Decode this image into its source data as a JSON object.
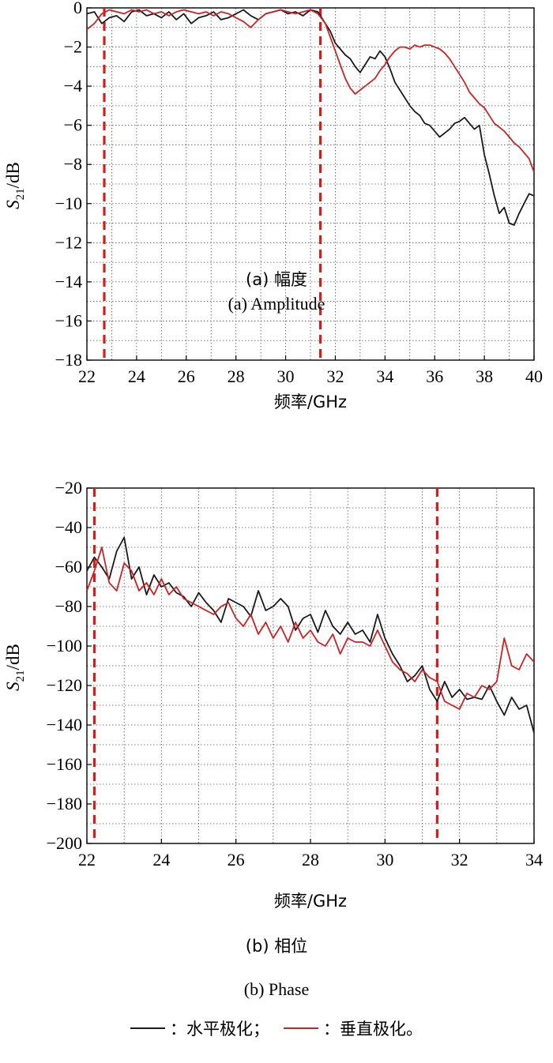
{
  "chart_data": [
    {
      "type": "line",
      "panel": "amplitude",
      "xlabel": "频率/GHz",
      "ylabel_main": "S",
      "ylabel_sub": "21",
      "ylabel_unit": "/dB",
      "caption_cn": "(a) 幅度",
      "caption_en": "(a) Amplitude",
      "xlim": [
        22,
        40
      ],
      "ylim": [
        -18,
        0
      ],
      "xticks": [
        22,
        24,
        26,
        28,
        30,
        32,
        34,
        36,
        38,
        40
      ],
      "yticks": [
        0,
        -2,
        -4,
        -6,
        -8,
        -10,
        -12,
        -14,
        -16,
        -18
      ],
      "grid": true,
      "dashed_vlines": [
        22.7,
        31.4
      ],
      "series": [
        {
          "key": "horizontal",
          "color": "#1a1a1a",
          "x": [
            22.0,
            22.3,
            22.6,
            22.9,
            23.2,
            23.5,
            23.8,
            24.1,
            24.4,
            24.7,
            25.0,
            25.3,
            25.6,
            25.9,
            26.2,
            26.5,
            26.8,
            27.1,
            27.4,
            27.7,
            28.0,
            28.3,
            28.6,
            28.9,
            29.2,
            29.5,
            29.8,
            30.1,
            30.4,
            30.7,
            31.0,
            31.3,
            31.6,
            31.8,
            32.0,
            32.2,
            32.4,
            32.6,
            32.8,
            33.0,
            33.2,
            33.4,
            33.6,
            33.8,
            34.0,
            34.2,
            34.4,
            34.6,
            34.8,
            35.0,
            35.2,
            35.4,
            35.6,
            35.8,
            36.0,
            36.2,
            36.4,
            36.6,
            36.8,
            37.0,
            37.2,
            37.4,
            37.6,
            37.8,
            38.0,
            38.2,
            38.4,
            38.6,
            38.8,
            39.0,
            39.2,
            39.4,
            39.6,
            39.8,
            40.0
          ],
          "y": [
            -0.3,
            -0.2,
            -0.8,
            -0.5,
            -0.4,
            -0.7,
            -0.2,
            -0.1,
            -0.4,
            -0.3,
            -0.5,
            -0.2,
            -0.6,
            -0.3,
            -0.8,
            -0.5,
            -0.4,
            -0.2,
            -0.6,
            -0.5,
            -0.3,
            -0.1,
            -0.4,
            -0.6,
            -0.3,
            -0.2,
            -0.1,
            -0.3,
            -0.2,
            -0.4,
            -0.1,
            -0.2,
            -0.8,
            -1.2,
            -1.8,
            -2.1,
            -2.4,
            -2.6,
            -3.0,
            -3.3,
            -2.9,
            -2.5,
            -2.6,
            -2.2,
            -2.5,
            -3.1,
            -3.8,
            -4.2,
            -4.6,
            -5.0,
            -5.3,
            -5.5,
            -5.9,
            -6.0,
            -6.3,
            -6.6,
            -6.4,
            -6.2,
            -5.9,
            -5.8,
            -5.6,
            -5.9,
            -6.2,
            -6.0,
            -7.5,
            -8.5,
            -9.6,
            -10.5,
            -10.2,
            -11.0,
            -11.1,
            -10.5,
            -10.0,
            -9.5,
            -9.6
          ]
        },
        {
          "key": "vertical",
          "color": "#cc2222",
          "x": [
            22.0,
            22.3,
            22.6,
            22.9,
            23.2,
            23.5,
            23.8,
            24.1,
            24.4,
            24.7,
            25.0,
            25.3,
            25.6,
            25.9,
            26.2,
            26.5,
            26.8,
            27.1,
            27.4,
            27.7,
            28.0,
            28.3,
            28.6,
            28.9,
            29.2,
            29.5,
            29.8,
            30.1,
            30.4,
            30.7,
            31.0,
            31.3,
            31.6,
            31.8,
            32.0,
            32.2,
            32.4,
            32.6,
            32.8,
            33.0,
            33.2,
            33.4,
            33.6,
            33.8,
            34.0,
            34.2,
            34.4,
            34.6,
            34.8,
            35.0,
            35.2,
            35.4,
            35.6,
            35.8,
            36.0,
            36.2,
            36.4,
            36.6,
            36.8,
            37.0,
            37.2,
            37.4,
            37.6,
            37.8,
            38.0,
            38.2,
            38.4,
            38.6,
            38.8,
            39.0,
            39.2,
            39.4,
            39.6,
            39.8,
            40.0
          ],
          "y": [
            -1.1,
            -0.8,
            -0.3,
            -0.1,
            -0.2,
            -0.3,
            -0.1,
            -0.2,
            -0.1,
            -0.3,
            -0.2,
            -0.4,
            -0.2,
            -0.1,
            -0.2,
            -0.3,
            -0.2,
            -0.4,
            -0.2,
            -0.3,
            -0.5,
            -0.7,
            -1.0,
            -0.6,
            -0.3,
            -0.2,
            -0.1,
            -0.2,
            -0.3,
            -0.2,
            -0.1,
            -0.3,
            -0.8,
            -1.5,
            -2.2,
            -2.9,
            -3.6,
            -4.1,
            -4.4,
            -4.2,
            -4.0,
            -3.8,
            -3.6,
            -3.2,
            -2.9,
            -2.5,
            -2.2,
            -2.0,
            -2.0,
            -2.1,
            -1.9,
            -2.0,
            -1.9,
            -1.9,
            -2.0,
            -2.1,
            -2.3,
            -2.6,
            -3.0,
            -3.4,
            -3.8,
            -4.3,
            -4.6,
            -4.9,
            -5.1,
            -5.5,
            -5.9,
            -6.1,
            -6.3,
            -6.6,
            -6.9,
            -7.1,
            -7.4,
            -7.7,
            -8.4
          ]
        }
      ]
    },
    {
      "type": "line",
      "panel": "phase",
      "xlabel": "频率/GHz",
      "ylabel_main": "S",
      "ylabel_sub": "21",
      "ylabel_unit": "/dB",
      "caption_cn": "(b) 相位",
      "caption_en": "(b) Phase",
      "xlim": [
        22,
        34
      ],
      "ylim": [
        -200,
        -20
      ],
      "xticks": [
        22,
        24,
        26,
        28,
        30,
        32,
        34
      ],
      "yticks": [
        -20,
        -40,
        -60,
        -80,
        -100,
        -120,
        -140,
        -160,
        -180,
        -200
      ],
      "grid": true,
      "dashed_vlines": [
        22.2,
        31.4
      ],
      "series": [
        {
          "key": "horizontal",
          "color": "#1a1a1a",
          "x": [
            22.0,
            22.2,
            22.4,
            22.6,
            22.8,
            23.0,
            23.2,
            23.4,
            23.6,
            23.8,
            24.0,
            24.2,
            24.4,
            24.6,
            24.8,
            25.0,
            25.2,
            25.4,
            25.6,
            25.8,
            26.0,
            26.2,
            26.4,
            26.6,
            26.8,
            27.0,
            27.2,
            27.4,
            27.6,
            27.8,
            28.0,
            28.2,
            28.4,
            28.6,
            28.8,
            29.0,
            29.2,
            29.4,
            29.6,
            29.8,
            30.0,
            30.2,
            30.4,
            30.6,
            30.8,
            31.0,
            31.2,
            31.4,
            31.6,
            31.8,
            32.0,
            32.2,
            32.4,
            32.6,
            32.8,
            33.0,
            33.2,
            33.4,
            33.6,
            33.8,
            34.0
          ],
          "y": [
            -62,
            -55,
            -60,
            -66,
            -52,
            -45,
            -66,
            -60,
            -74,
            -64,
            -70,
            -68,
            -73,
            -75,
            -80,
            -73,
            -78,
            -82,
            -88,
            -76,
            -78,
            -80,
            -85,
            -72,
            -82,
            -80,
            -76,
            -80,
            -92,
            -86,
            -84,
            -93,
            -82,
            -90,
            -94,
            -88,
            -94,
            -92,
            -98,
            -84,
            -96,
            -104,
            -110,
            -118,
            -115,
            -110,
            -122,
            -128,
            -118,
            -126,
            -122,
            -127,
            -126,
            -127,
            -120,
            -128,
            -135,
            -126,
            -132,
            -130,
            -144
          ]
        },
        {
          "key": "vertical",
          "color": "#cc2222",
          "x": [
            22.0,
            22.2,
            22.4,
            22.6,
            22.8,
            23.0,
            23.2,
            23.4,
            23.6,
            23.8,
            24.0,
            24.2,
            24.4,
            24.6,
            24.8,
            25.0,
            25.2,
            25.4,
            25.6,
            25.8,
            26.0,
            26.2,
            26.4,
            26.6,
            26.8,
            27.0,
            27.2,
            27.4,
            27.6,
            27.8,
            28.0,
            28.2,
            28.4,
            28.6,
            28.8,
            29.0,
            29.2,
            29.4,
            29.6,
            29.8,
            30.0,
            30.2,
            30.4,
            30.6,
            30.8,
            31.0,
            31.2,
            31.4,
            31.6,
            31.8,
            32.0,
            32.2,
            32.4,
            32.6,
            32.8,
            33.0,
            33.2,
            33.4,
            33.6,
            33.8,
            34.0
          ],
          "y": [
            -72,
            -62,
            -50,
            -68,
            -72,
            -58,
            -62,
            -72,
            -68,
            -74,
            -66,
            -74,
            -70,
            -76,
            -78,
            -80,
            -82,
            -84,
            -80,
            -78,
            -86,
            -90,
            -84,
            -94,
            -88,
            -96,
            -90,
            -98,
            -88,
            -96,
            -92,
            -98,
            -100,
            -94,
            -104,
            -96,
            -98,
            -98,
            -100,
            -92,
            -100,
            -108,
            -112,
            -114,
            -118,
            -112,
            -116,
            -118,
            -128,
            -130,
            -132,
            -124,
            -126,
            -120,
            -122,
            -118,
            -96,
            -110,
            -112,
            -104,
            -108
          ]
        }
      ]
    }
  ],
  "legend": {
    "items": [
      {
        "key": "horizontal",
        "color": "#1a1a1a",
        "label": "：水平极化；"
      },
      {
        "key": "vertical",
        "color": "#cc2222",
        "label": "：垂直极化。"
      }
    ]
  }
}
